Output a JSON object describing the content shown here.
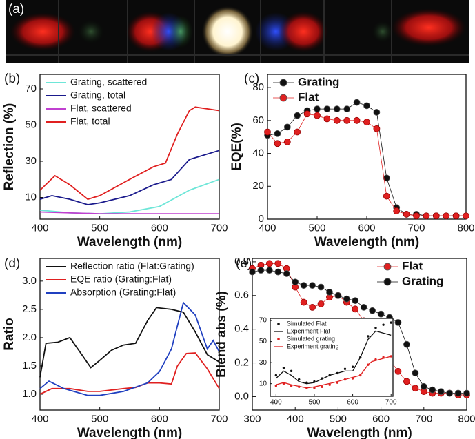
{
  "chart_data": [
    {
      "type": "image",
      "panel": "(a)"
    },
    {
      "type": "line",
      "panel": "(b)",
      "xlabel": "Wavelength (nm)",
      "ylabel": "Reflection (%)",
      "xlim": [
        400,
        700
      ],
      "xticks": [
        400,
        500,
        600,
        700
      ],
      "ylim": [
        -2,
        78
      ],
      "yticks": [
        10,
        30,
        50,
        70
      ],
      "legend": "upper left",
      "series": [
        {
          "name": "Grating, scattered",
          "color": "#6ee6d8",
          "x": [
            400,
            450,
            500,
            550,
            600,
            650,
            700
          ],
          "values": [
            3,
            1.5,
            1,
            2,
            5,
            14,
            20
          ]
        },
        {
          "name": "Grating, total",
          "color": "#1a1a8c",
          "x": [
            400,
            420,
            450,
            480,
            500,
            550,
            590,
            620,
            650,
            700
          ],
          "values": [
            9,
            11,
            9,
            6,
            7,
            11,
            17,
            20,
            31,
            36
          ]
        },
        {
          "name": "Flat, scattered",
          "color": "#c040d0",
          "x": [
            400,
            500,
            700
          ],
          "values": [
            2,
            1,
            1
          ]
        },
        {
          "name": "Flat, total",
          "color": "#e02020",
          "x": [
            400,
            425,
            450,
            480,
            500,
            550,
            590,
            610,
            630,
            650,
            660,
            700
          ],
          "values": [
            14,
            22,
            17,
            9,
            11,
            20,
            27,
            29,
            45,
            58,
            60,
            58
          ]
        }
      ]
    },
    {
      "type": "line",
      "markers": true,
      "panel": "(c)",
      "xlabel": "Wavelength (nm)",
      "ylabel": "EQE(%)",
      "xlim": [
        400,
        800
      ],
      "xticks": [
        400,
        500,
        600,
        700,
        800
      ],
      "ylim": [
        0,
        88
      ],
      "yticks": [
        0,
        20,
        40,
        60,
        80
      ],
      "legend": "upper left",
      "series": [
        {
          "name": "Grating",
          "color": "#111111",
          "x": [
            400,
            420,
            440,
            460,
            480,
            500,
            520,
            540,
            560,
            580,
            600,
            620,
            640,
            660,
            680,
            700,
            720,
            740,
            760,
            780,
            800
          ],
          "values": [
            51,
            52,
            56,
            63,
            66,
            67,
            67,
            67,
            67,
            71,
            69,
            65,
            25,
            7,
            3,
            3,
            2,
            2,
            2,
            2,
            2
          ]
        },
        {
          "name": "Flat",
          "color": "#e02020",
          "x": [
            400,
            420,
            440,
            460,
            480,
            500,
            520,
            540,
            560,
            580,
            600,
            620,
            640,
            660,
            680,
            700,
            720,
            740,
            760,
            780,
            800
          ],
          "values": [
            53,
            46,
            47,
            53,
            64,
            63,
            61,
            60,
            60,
            60,
            59,
            55,
            14,
            5,
            3,
            2,
            2,
            2,
            2,
            2,
            2
          ]
        }
      ]
    },
    {
      "type": "line",
      "panel": "(d)",
      "xlabel": "Wavelength (nm)",
      "ylabel": "Ratio",
      "xlim": [
        400,
        700
      ],
      "xticks": [
        400,
        500,
        600,
        700
      ],
      "ylim": [
        0.72,
        3.4
      ],
      "yticks": [
        {
          "value": 1,
          "label": "1.0"
        },
        1.5,
        {
          "value": 2,
          "label": "2.0"
        },
        2.5,
        {
          "value": 3,
          "label": "3.0"
        }
      ],
      "legend": "upper left",
      "series": [
        {
          "name": "Reflection ratio (Flat:Grating)",
          "color": "#111111",
          "x": [
            400,
            410,
            430,
            450,
            470,
            485,
            500,
            520,
            540,
            560,
            580,
            595,
            620,
            640,
            660,
            680,
            700
          ],
          "values": [
            1.3,
            1.9,
            1.92,
            2.0,
            1.7,
            1.47,
            1.6,
            1.78,
            1.87,
            1.9,
            2.3,
            2.53,
            2.5,
            2.45,
            2.1,
            1.7,
            1.57
          ]
        },
        {
          "name": "EQE ratio (Grating:Flat)",
          "color": "#e02020",
          "x": [
            400,
            420,
            450,
            480,
            500,
            540,
            560,
            580,
            600,
            620,
            630,
            645,
            660,
            680,
            700
          ],
          "values": [
            1.0,
            1.1,
            1.1,
            1.05,
            1.05,
            1.1,
            1.12,
            1.2,
            1.2,
            1.18,
            1.5,
            1.72,
            1.73,
            1.45,
            1.1
          ]
        },
        {
          "name": "Absorption (Grating:Flat)",
          "color": "#2040c0",
          "x": [
            400,
            415,
            440,
            480,
            500,
            540,
            580,
            600,
            620,
            640,
            660,
            680,
            690,
            700
          ],
          "values": [
            1.1,
            1.23,
            1.1,
            0.98,
            0.98,
            1.05,
            1.2,
            1.4,
            1.8,
            2.62,
            2.4,
            1.8,
            1.95,
            1.75
          ]
        }
      ]
    },
    {
      "type": "line",
      "markers": true,
      "panel": "(e)",
      "xlabel": "Wavelength (nm)",
      "ylabel": "Blend abs (%)",
      "xlim": [
        300,
        800
      ],
      "xticks": [
        300,
        400,
        500,
        600,
        700,
        800
      ],
      "ylim": [
        -0.08,
        0.82
      ],
      "yticks": [
        {
          "value": 0,
          "label": "0.0"
        },
        0.2,
        0.4,
        0.6,
        0.8
      ],
      "legend": "upper right",
      "series": [
        {
          "name": "Flat",
          "color": "#e02020",
          "x": [
            300,
            320,
            340,
            360,
            380,
            400,
            420,
            440,
            460,
            480,
            500,
            520,
            540,
            560,
            580,
            600,
            620,
            640,
            660,
            680,
            700,
            720,
            740,
            760,
            780,
            800
          ],
          "values": [
            0.76,
            0.78,
            0.79,
            0.79,
            0.76,
            0.65,
            0.56,
            0.53,
            0.55,
            0.59,
            0.6,
            0.56,
            0.52,
            0.45,
            0.38,
            0.3,
            0.22,
            0.15,
            0.09,
            0.05,
            0.03,
            0.02,
            0.02,
            0.02,
            0.01,
            0.01
          ]
        },
        {
          "name": "Grating",
          "color": "#111111",
          "x": [
            300,
            320,
            340,
            360,
            380,
            400,
            420,
            440,
            460,
            480,
            500,
            520,
            540,
            560,
            580,
            600,
            620,
            640,
            660,
            680,
            700,
            720,
            740,
            760,
            780,
            800
          ],
          "values": [
            0.74,
            0.75,
            0.75,
            0.74,
            0.73,
            0.68,
            0.66,
            0.66,
            0.65,
            0.62,
            0.6,
            0.58,
            0.57,
            0.53,
            0.51,
            0.49,
            0.47,
            0.44,
            0.31,
            0.14,
            0.06,
            0.04,
            0.03,
            0.02,
            0.02,
            0.02
          ]
        }
      ]
    },
    {
      "type": "line",
      "inset": true,
      "xlim": [
        385,
        705
      ],
      "xticks": [
        400,
        500,
        600,
        700
      ],
      "ylim": [
        -2,
        72
      ],
      "yticks": [
        10,
        30,
        50,
        70
      ],
      "legend": "upper left",
      "series": [
        {
          "name": "Simulated Flat",
          "color": "#111111",
          "style": "dots",
          "x": [
            400,
            420,
            440,
            460,
            480,
            500,
            520,
            540,
            560,
            580,
            600,
            620,
            640,
            660,
            680,
            700
          ],
          "values": [
            18,
            25,
            22,
            14,
            11,
            12,
            15,
            18,
            20,
            24,
            26,
            35,
            55,
            63,
            66,
            68
          ]
        },
        {
          "name": "Experiment Flat",
          "color": "#111111",
          "style": "line",
          "x": [
            400,
            420,
            440,
            460,
            480,
            500,
            540,
            580,
            600,
            620,
            640,
            660,
            680,
            700
          ],
          "values": [
            15,
            22,
            18,
            12,
            10,
            11,
            18,
            22,
            22,
            35,
            52,
            60,
            58,
            56
          ]
        },
        {
          "name": "Simulated grating",
          "color": "#e02020",
          "style": "dots",
          "x": [
            400,
            420,
            440,
            460,
            480,
            500,
            520,
            540,
            560,
            580,
            600,
            620,
            640,
            660,
            680,
            700
          ],
          "values": [
            8,
            10,
            8,
            7,
            6,
            6,
            7,
            9,
            11,
            14,
            15,
            18,
            28,
            33,
            35,
            36
          ]
        },
        {
          "name": "Experiment grating",
          "color": "#e02020",
          "style": "line",
          "x": [
            400,
            420,
            440,
            480,
            500,
            550,
            590,
            620,
            640,
            650,
            700
          ],
          "values": [
            9,
            11,
            9,
            6,
            7,
            11,
            15,
            18,
            28,
            31,
            36
          ]
        }
      ]
    }
  ]
}
